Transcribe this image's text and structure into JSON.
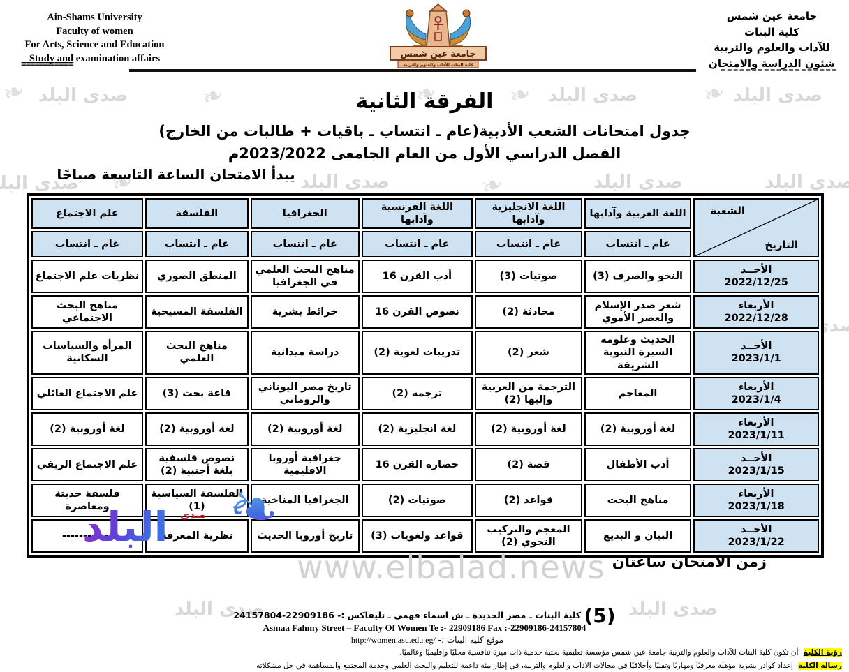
{
  "header": {
    "english_lines": [
      "Ain-Shams University",
      "Faculty of women",
      "For Arts, Science and Education",
      "Study and examination affairs"
    ],
    "english_underline": "===========",
    "arabic_lines": [
      "جامعة عين شمس",
      "كلية البنات",
      "للآداب والعلوم والتربية",
      "شئون الدراسة والامتحان"
    ],
    "logo_banner": "جامعة عين شمس",
    "logo_subbanner": "كلية البنات للآداب والعلوم والتربية"
  },
  "titles": {
    "main": "الفرقة الثانية",
    "subtitle1": "جدول امتحانات الشعب الأدبية(عام ـ انتساب ـ باقيات + طالبات من الخارج)",
    "subtitle2": "الفصل الدراسي الأول من العام الجامعى 2023/2022م",
    "start_note": "يبدأ الامتحان الساعة التاسعة صباحًا"
  },
  "table": {
    "corner": {
      "top": "الشعبة",
      "bottom": "التاريخ"
    },
    "subheader": "عام ـ انتساب",
    "columns": [
      "اللغة العربية وآدابها",
      "اللغة الانجليزية وآدابها",
      "اللغة الفرنسية وآدابها",
      "الجغرافيا",
      "الفلسفة",
      "علم الاجتماع"
    ],
    "rows": [
      {
        "day": "الأحــد",
        "date": "2022/12/25",
        "cells": [
          "النحو والصرف (3)",
          "صوتيات (3)",
          "أدب القرن 16",
          "مناهج البحث العلمي في الجغرافيا",
          "المنطق الصوري",
          "نظريات علم الاجتماع"
        ]
      },
      {
        "day": "الأربعاء",
        "date": "2022/12/28",
        "cells": [
          "شعر صدر الإسلام والعصر الأموي",
          "محادثة (2)",
          "نصوص القرن 16",
          "خرائط بشرية",
          "الفلسفة المسيحية",
          "مناهج البحث الاجتماعي"
        ]
      },
      {
        "day": "الأحــد",
        "date": "2023/1/1",
        "cells": [
          "الحديث وعلومه السيرة النبوية الشريفة",
          "شعر (2)",
          "تدريبات لغوية (2)",
          "دراسة ميدانية",
          "مناهج البحث العلمي",
          "المرأه والسياسات السكانية"
        ]
      },
      {
        "day": "الأربعاء",
        "date": "2023/1/4",
        "cells": [
          "المعاجم",
          "الترجمة من العربية وإليها (2)",
          "ترجمه (2)",
          "تاريخ مصر اليوناني والروماني",
          "قاعة بحث (3)",
          "علم الاجتماع العائلي"
        ]
      },
      {
        "day": "الأربعاء",
        "date": "2023/1/11",
        "cells": [
          "لغة أوروبية (2)",
          "لغة أوروبية (2)",
          "لغة انجليزية (2)",
          "لغة أوروبية (2)",
          "لغة أوروبية (2)",
          "لغة أوروبية (2)"
        ]
      },
      {
        "day": "الأحــد",
        "date": "2023/1/15",
        "cells": [
          "أدب الأطفال",
          "قصة (2)",
          "حضاره القرن 16",
          "جغرافية أوروبا الاقليمية",
          "نصوص فلسفية بلغة أجنبية (2)",
          "علم الاجتماع الريفي"
        ]
      },
      {
        "day": "الأربعاء",
        "date": "2023/1/18",
        "cells": [
          "مناهج البحث",
          "قواعد (2)",
          "صوتيات (2)",
          "الجغرافيا المناخية",
          "الفلسفة السياسية (1)",
          "فلسفة حديثة ومعاصرة"
        ]
      },
      {
        "day": "الأحــد",
        "date": "2023/1/22",
        "cells": [
          "البيان و البديع",
          "المعجم والتركيب النحوي (2)",
          "قواعد ولغويات (3)",
          "تاريخ أوروبا الحديث",
          "نظرية المعرفة",
          "------------"
        ]
      }
    ]
  },
  "footer": {
    "duration_note": "زمن الامتحان ساعتان",
    "site_watermark": "www.elbalad.news",
    "page_number": "(5)",
    "address_ar": "كلية البنات ـ مصر الجديدة ـ ش اسماء فهمي ـ تليفاكس :- 22909186-24157804",
    "address_en": "Asmaa Fahmy Street – Faculty Of Women Te :- 22909186 Fax :-22909186-24157804",
    "website_label": "موقع كلية البنات :-",
    "website_url": "http://women.asu.edu.eg/",
    "vision_label": "رؤية الكلية",
    "vision_text": "أن تكون كلية البنات للآداب والعلوم والتربية جامعة عين شمس مؤسسة تعليمية بحثية خدمية ذات ميزة تنافسية محليًا وإقليميًا وعالميًا.",
    "mission_label": "رسالة الكلية",
    "mission_text": "إعداد كوادر بشرية مؤهلة معرفيًا ومهاريًا وتقنيًا وأخلاقيًا في مجالات الآداب والعلوم والتربية، في إطار بيئة داعمة للتعليم والبحث العلمي وخدمة المجتمع والمساهمة في حل مشكلاته"
  },
  "watermark": {
    "text": "صدى البلد",
    "logo_main": "البلد",
    "logo_small": "صدى"
  },
  "colors": {
    "table_header_bg": "#cfe2f2",
    "highlight_yellow": "#ffff00",
    "watermark_gray": "#7d7d7d",
    "logo_purple": "#8a2fd0"
  }
}
